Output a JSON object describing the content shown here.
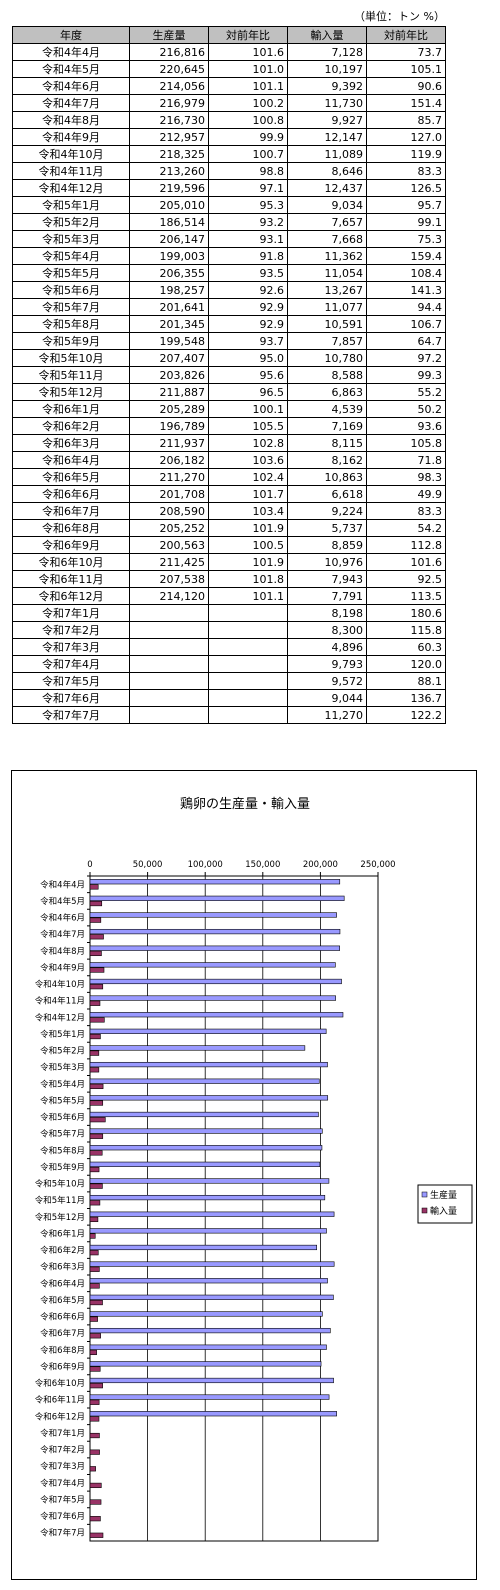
{
  "table": {
    "unit": "（単位：トン %）",
    "headers": [
      "年度",
      "生産量",
      "対前年比",
      "輸入量",
      "対前年比"
    ],
    "rows": [
      [
        "令和4年4月",
        "216,816",
        "101.6",
        "7,128",
        "73.7"
      ],
      [
        "令和4年5月",
        "220,645",
        "101.0",
        "10,197",
        "105.1"
      ],
      [
        "令和4年6月",
        "214,056",
        "101.1",
        "9,392",
        "90.6"
      ],
      [
        "令和4年7月",
        "216,979",
        "100.2",
        "11,730",
        "151.4"
      ],
      [
        "令和4年8月",
        "216,730",
        "100.8",
        "9,927",
        "85.7"
      ],
      [
        "令和4年9月",
        "212,957",
        "99.9",
        "12,147",
        "127.0"
      ],
      [
        "令和4年10月",
        "218,325",
        "100.7",
        "11,089",
        "119.9"
      ],
      [
        "令和4年11月",
        "213,260",
        "98.8",
        "8,646",
        "83.3"
      ],
      [
        "令和4年12月",
        "219,596",
        "97.1",
        "12,437",
        "126.5"
      ],
      [
        "令和5年1月",
        "205,010",
        "95.3",
        "9,034",
        "95.7"
      ],
      [
        "令和5年2月",
        "186,514",
        "93.2",
        "7,657",
        "99.1"
      ],
      [
        "令和5年3月",
        "206,147",
        "93.1",
        "7,668",
        "75.3"
      ],
      [
        "令和5年4月",
        "199,003",
        "91.8",
        "11,362",
        "159.4"
      ],
      [
        "令和5年5月",
        "206,355",
        "93.5",
        "11,054",
        "108.4"
      ],
      [
        "令和5年6月",
        "198,257",
        "92.6",
        "13,267",
        "141.3"
      ],
      [
        "令和5年7月",
        "201,641",
        "92.9",
        "11,077",
        "94.4"
      ],
      [
        "令和5年8月",
        "201,345",
        "92.9",
        "10,591",
        "106.7"
      ],
      [
        "令和5年9月",
        "199,548",
        "93.7",
        "7,857",
        "64.7"
      ],
      [
        "令和5年10月",
        "207,407",
        "95.0",
        "10,780",
        "97.2"
      ],
      [
        "令和5年11月",
        "203,826",
        "95.6",
        "8,588",
        "99.3"
      ],
      [
        "令和5年12月",
        "211,887",
        "96.5",
        "6,863",
        "55.2"
      ],
      [
        "令和6年1月",
        "205,289",
        "100.1",
        "4,539",
        "50.2"
      ],
      [
        "令和6年2月",
        "196,789",
        "105.5",
        "7,169",
        "93.6"
      ],
      [
        "令和6年3月",
        "211,937",
        "102.8",
        "8,115",
        "105.8"
      ],
      [
        "令和6年4月",
        "206,182",
        "103.6",
        "8,162",
        "71.8"
      ],
      [
        "令和6年5月",
        "211,270",
        "102.4",
        "10,863",
        "98.3"
      ],
      [
        "令和6年6月",
        "201,708",
        "101.7",
        "6,618",
        "49.9"
      ],
      [
        "令和6年7月",
        "208,590",
        "103.4",
        "9,224",
        "83.3"
      ],
      [
        "令和6年8月",
        "205,252",
        "101.9",
        "5,737",
        "54.2"
      ],
      [
        "令和6年9月",
        "200,563",
        "100.5",
        "8,859",
        "112.8"
      ],
      [
        "令和6年10月",
        "211,425",
        "101.9",
        "10,976",
        "101.6"
      ],
      [
        "令和6年11月",
        "207,538",
        "101.8",
        "7,943",
        "92.5"
      ],
      [
        "令和6年12月",
        "214,120",
        "101.1",
        "7,791",
        "113.5"
      ],
      [
        "令和7年1月",
        "",
        "",
        "8,198",
        "180.6"
      ],
      [
        "令和7年2月",
        "",
        "",
        "8,300",
        "115.8"
      ],
      [
        "令和7年3月",
        "",
        "",
        "4,896",
        "60.3"
      ],
      [
        "令和7年4月",
        "",
        "",
        "9,793",
        "120.0"
      ],
      [
        "令和7年5月",
        "",
        "",
        "9,572",
        "88.1"
      ],
      [
        "令和7年6月",
        "",
        "",
        "9,044",
        "136.7"
      ],
      [
        "令和7年7月",
        "",
        "",
        "11,270",
        "122.2"
      ]
    ]
  },
  "chart_data": {
    "type": "bar",
    "orientation": "horizontal",
    "title": "鶏卵の生産量・輸入量",
    "categories": [
      "令和4年4月",
      "令和4年5月",
      "令和4年6月",
      "令和4年7月",
      "令和4年8月",
      "令和4年9月",
      "令和4年10月",
      "令和4年11月",
      "令和4年12月",
      "令和5年1月",
      "令和5年2月",
      "令和5年3月",
      "令和5年4月",
      "令和5年5月",
      "令和5年6月",
      "令和5年7月",
      "令和5年8月",
      "令和5年9月",
      "令和5年10月",
      "令和5年11月",
      "令和5年12月",
      "令和6年1月",
      "令和6年2月",
      "令和6年3月",
      "令和6年4月",
      "令和6年5月",
      "令和6年6月",
      "令和6年7月",
      "令和6年8月",
      "令和6年9月",
      "令和6年10月",
      "令和6年11月",
      "令和6年12月",
      "令和7年1月",
      "令和7年2月",
      "令和7年3月",
      "令和7年4月",
      "令和7年5月",
      "令和7年6月",
      "令和7年7月"
    ],
    "series": [
      {
        "name": "生産量",
        "color": "#9999ff",
        "values": [
          216816,
          220645,
          214056,
          216979,
          216730,
          212957,
          218325,
          213260,
          219596,
          205010,
          186514,
          206147,
          199003,
          206355,
          198257,
          201641,
          201345,
          199548,
          207407,
          203826,
          211887,
          205289,
          196789,
          211937,
          206182,
          211270,
          201708,
          208590,
          205252,
          200563,
          211425,
          207538,
          214120,
          null,
          null,
          null,
          null,
          null,
          null,
          null
        ]
      },
      {
        "name": "輸入量",
        "color": "#993366",
        "values": [
          7128,
          10197,
          9392,
          11730,
          9927,
          12147,
          11089,
          8646,
          12437,
          9034,
          7657,
          7668,
          11362,
          11054,
          13267,
          11077,
          10591,
          7857,
          10780,
          8588,
          6863,
          4539,
          7169,
          8115,
          8162,
          10863,
          6618,
          9224,
          5737,
          8859,
          10976,
          7943,
          7791,
          8198,
          8300,
          4896,
          9793,
          9572,
          9044,
          11270
        ]
      }
    ],
    "xlim": [
      0,
      250000
    ],
    "xticks": [
      0,
      50000,
      100000,
      150000,
      200000,
      250000
    ],
    "xtick_labels": [
      "0",
      "50,000",
      "100,000",
      "150,000",
      "200,000",
      "250,000"
    ],
    "grid": true,
    "legend": "right",
    "xlabel": "",
    "ylabel": ""
  }
}
